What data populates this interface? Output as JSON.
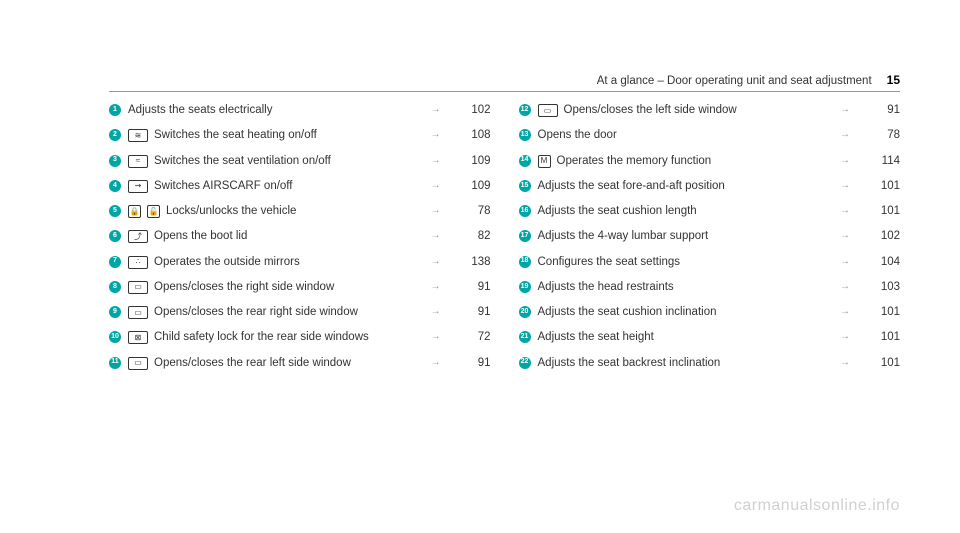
{
  "header": {
    "title": "At a glance – Door operating unit and seat adjustment",
    "page_number": "15"
  },
  "colors": {
    "marker_bg": "#00a6a6",
    "marker_text": "#ffffff",
    "text": "#333333",
    "arrow": "#999999",
    "border": "#999999",
    "watermark": "#d0d0d0"
  },
  "left_column": [
    {
      "num": "1",
      "icons": [],
      "label": "Adjusts the seats electrically",
      "page": "102"
    },
    {
      "num": "2",
      "icons": [
        "heat"
      ],
      "label": "Switches the seat heating on/off",
      "page": "108"
    },
    {
      "num": "3",
      "icons": [
        "vent"
      ],
      "label": "Switches the seat ventilation on/off",
      "page": "109"
    },
    {
      "num": "4",
      "icons": [
        "air"
      ],
      "label": "Switches AIRSCARF on/off",
      "page": "109"
    },
    {
      "num": "5",
      "icons": [
        "lock",
        "unlock"
      ],
      "label": "Locks/unlocks the vehicle",
      "page": "78"
    },
    {
      "num": "6",
      "icons": [
        "boot"
      ],
      "label": "Opens the boot lid",
      "page": "82"
    },
    {
      "num": "7",
      "icons": [
        "mirror"
      ],
      "label": "Operates the outside mirrors",
      "page": "138"
    },
    {
      "num": "8",
      "icons": [
        "window"
      ],
      "label": "Opens/closes the right side window",
      "page": "91"
    },
    {
      "num": "9",
      "icons": [
        "window"
      ],
      "label": "Opens/closes the rear right side window",
      "page": "91"
    },
    {
      "num": "10",
      "icons": [
        "childlock"
      ],
      "label": "Child safety lock for the rear side windows",
      "page": "72"
    },
    {
      "num": "11",
      "icons": [
        "window"
      ],
      "label": "Opens/closes the rear left side window",
      "page": "91"
    }
  ],
  "right_column": [
    {
      "num": "12",
      "icons": [
        "window"
      ],
      "label": "Opens/closes the left side window",
      "page": "91"
    },
    {
      "num": "13",
      "icons": [],
      "label": "Opens the door",
      "page": "78"
    },
    {
      "num": "14",
      "icons": [
        "memory"
      ],
      "label": "Operates the memory function",
      "page": "114"
    },
    {
      "num": "15",
      "icons": [],
      "label": "Adjusts the seat fore-and-aft position",
      "page": "101"
    },
    {
      "num": "16",
      "icons": [],
      "label": "Adjusts the seat cushion length",
      "page": "101"
    },
    {
      "num": "17",
      "icons": [],
      "label": "Adjusts the 4-way lumbar support",
      "page": "102"
    },
    {
      "num": "18",
      "icons": [],
      "label": "Configures the seat settings",
      "page": "104"
    },
    {
      "num": "19",
      "icons": [],
      "label": "Adjusts the head restraints",
      "page": "103"
    },
    {
      "num": "20",
      "icons": [],
      "label": "Adjusts the seat cushion inclination",
      "page": "101"
    },
    {
      "num": "21",
      "icons": [],
      "label": "Adjusts the seat height",
      "page": "101"
    },
    {
      "num": "22",
      "icons": [],
      "label": "Adjusts the seat backrest inclination",
      "page": "101"
    }
  ],
  "arrow_symbol": "→",
  "watermark": "carmanualsonline.info",
  "icon_glyphs": {
    "heat": "≋",
    "vent": "≈",
    "air": "⇝",
    "lock": "🔒",
    "unlock": "🔓",
    "boot": "⤴",
    "mirror": "∴",
    "window": "▭",
    "childlock": "⊠",
    "memory": "M"
  }
}
